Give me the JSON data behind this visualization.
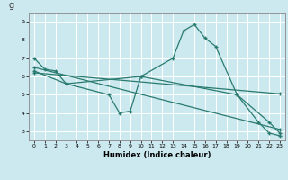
{
  "title": "g",
  "xlabel": "Humidex (Indice chaleur)",
  "background_color": "#cce9f0",
  "grid_color": "#ffffff",
  "line_color": "#2a7b6f",
  "xlim": [
    -0.5,
    23.5
  ],
  "ylim": [
    2.5,
    9.5
  ],
  "yticks": [
    3,
    4,
    5,
    6,
    7,
    8,
    9
  ],
  "xticks": [
    0,
    1,
    2,
    3,
    4,
    5,
    6,
    7,
    8,
    9,
    10,
    11,
    12,
    13,
    14,
    15,
    16,
    17,
    18,
    19,
    20,
    21,
    22,
    23
  ],
  "series": [
    {
      "x": [
        0,
        1,
        2,
        3,
        10,
        13,
        14,
        15,
        16,
        17,
        19,
        21,
        22,
        23
      ],
      "y": [
        7.0,
        6.4,
        6.3,
        5.6,
        6.0,
        7.0,
        8.5,
        8.85,
        8.1,
        7.65,
        5.0,
        3.5,
        2.9,
        2.75
      ]
    },
    {
      "x": [
        0,
        3,
        7,
        8,
        9,
        10,
        19,
        22,
        23
      ],
      "y": [
        6.3,
        5.6,
        5.0,
        4.0,
        4.1,
        6.0,
        5.0,
        3.5,
        2.9
      ]
    },
    {
      "x": [
        0,
        23
      ],
      "y": [
        6.5,
        3.1
      ]
    },
    {
      "x": [
        0,
        23
      ],
      "y": [
        6.2,
        5.05
      ]
    }
  ]
}
